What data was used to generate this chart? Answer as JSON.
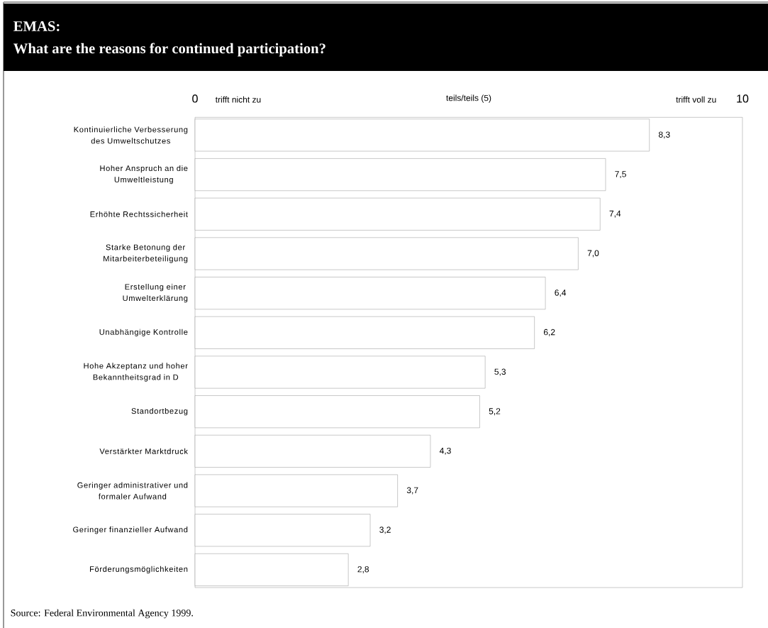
{
  "chart_data": {
    "type": "bar",
    "orientation": "horizontal",
    "title": "EMAS:",
    "subtitle": "What are the reasons for continued participation?",
    "categories": [
      "Kontinuierliche Verbesserung des Umweltschutzes",
      "Hoher Anspruch an die Umweltleistung",
      "Erhöhte Rechtssicherheit",
      "Starke Betonung der Mitarbeiterbeteiligung",
      "Erstellung einer Umwelterklärung",
      "Unabhängige Kontrolle",
      "Hohe Akzeptanz und hoher Bekanntheitsgrad in D",
      "Standortbezug",
      "Verstärkter Marktdruck",
      "Geringer administrativer und formaler Aufwand",
      "Geringer finanzieller Aufwand",
      "Förderungsmöglichkeiten"
    ],
    "values": [
      8.3,
      7.5,
      7.4,
      7.0,
      6.4,
      6.2,
      5.3,
      5.2,
      4.3,
      3.7,
      3.2,
      2.8
    ],
    "value_labels": [
      "8,3",
      "7,5",
      "7,4",
      "7,0",
      "6,4",
      "6,2",
      "5,3",
      "5,2",
      "4,3",
      "3,7",
      "3,2",
      "2,8"
    ],
    "color": "#ffffff",
    "xlim": [
      0,
      10
    ],
    "xticks": [
      0,
      {
        "value": 5,
        "label": "teils/teils (5)"
      },
      10
    ],
    "annotations": [
      "trifft nicht zu",
      "trifft voll zu",
      "Source: Federal Environmental Agency 1999."
    ],
    "grid": false
  }
}
